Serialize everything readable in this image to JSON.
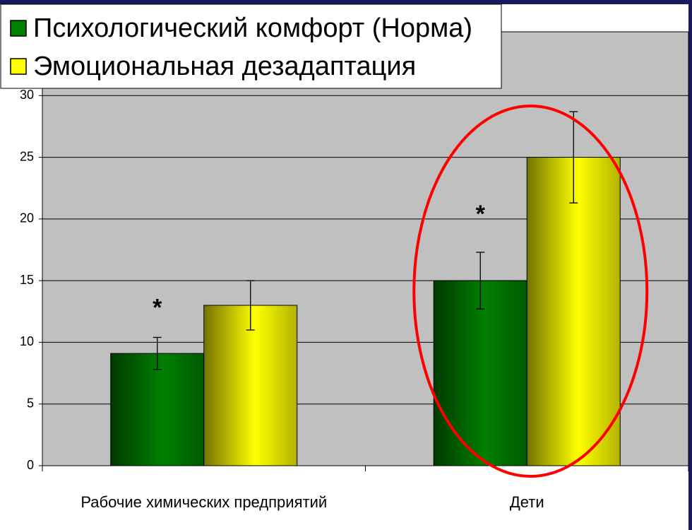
{
  "chart_data": {
    "type": "bar",
    "categories": [
      "Рабочие химических предприятий",
      "Дети"
    ],
    "series": [
      {
        "name": "Психологический комфорт (Норма)",
        "color": "#008000",
        "values": [
          9.1,
          15
        ],
        "errors": [
          1.3,
          2.3
        ]
      },
      {
        "name": "Эмоциональная дезадаптация",
        "color": "#ffff00",
        "values": [
          13,
          25
        ],
        "errors": [
          2,
          3.7
        ]
      }
    ],
    "annotations": [
      "*",
      "*"
    ],
    "ylim": [
      0,
      35
    ],
    "yticks": [
      0,
      5,
      10,
      15,
      20,
      25,
      30
    ],
    "grid": true,
    "legend": "top-left"
  }
}
